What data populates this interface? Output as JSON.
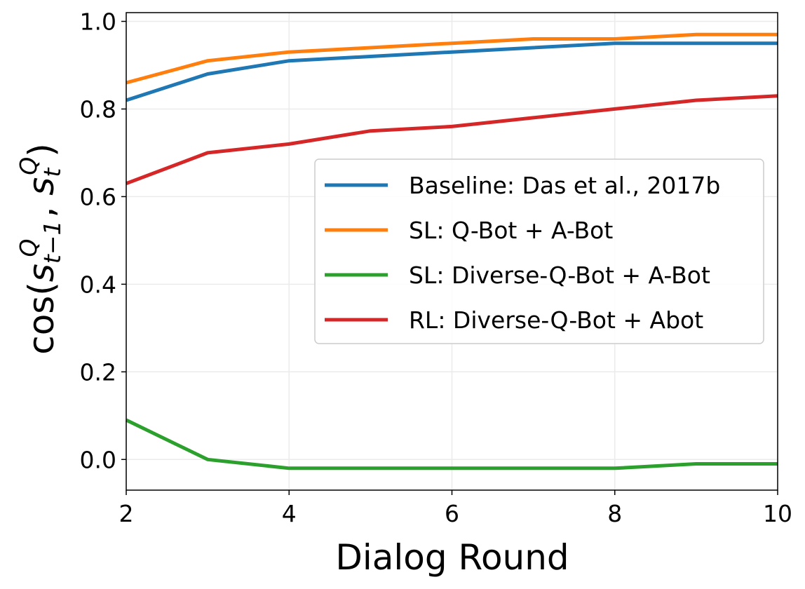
{
  "chart_data": {
    "type": "line",
    "title": "",
    "xlabel": "Dialog Round",
    "ylabel": "cos(s^Q_{t−1}, s^Q_t)",
    "ylabel_parts": {
      "prefix": "cos(",
      "s1": "s",
      "s1_sup": "Q",
      "s1_sub": "t−1",
      "comma": ", ",
      "s2": "s",
      "s2_sup": "Q",
      "s2_sub": "t",
      "suffix": ")"
    },
    "x": [
      2,
      3,
      4,
      5,
      6,
      7,
      8,
      9,
      10
    ],
    "xlim": [
      2,
      10
    ],
    "ylim": [
      -0.07,
      1.02
    ],
    "xticks": [
      2,
      4,
      6,
      8,
      10
    ],
    "xtick_labels": [
      "2",
      "4",
      "6",
      "8",
      "10"
    ],
    "yticks": [
      0.0,
      0.2,
      0.4,
      0.6,
      0.8,
      1.0
    ],
    "ytick_labels": [
      "0.0",
      "0.2",
      "0.4",
      "0.6",
      "0.8",
      "1.0"
    ],
    "grid": true,
    "legend_position": "center-right",
    "series": [
      {
        "name": "Baseline: Das et al., 2017b",
        "color": "#1f77b4",
        "values": [
          0.82,
          0.88,
          0.91,
          0.92,
          0.93,
          0.94,
          0.95,
          0.95,
          0.95
        ]
      },
      {
        "name": "SL: Q-Bot + A-Bot",
        "color": "#ff7f0e",
        "values": [
          0.86,
          0.91,
          0.93,
          0.94,
          0.95,
          0.96,
          0.96,
          0.97,
          0.97
        ]
      },
      {
        "name": "SL: Diverse-Q-Bot + A-Bot",
        "color": "#2ca02c",
        "values": [
          0.09,
          0.0,
          -0.02,
          -0.02,
          -0.02,
          -0.02,
          -0.02,
          -0.01,
          -0.01
        ]
      },
      {
        "name": "RL: Diverse-Q-Bot + Abot",
        "color": "#d62728",
        "values": [
          0.63,
          0.7,
          0.72,
          0.75,
          0.76,
          0.78,
          0.8,
          0.82,
          0.83
        ]
      }
    ]
  }
}
